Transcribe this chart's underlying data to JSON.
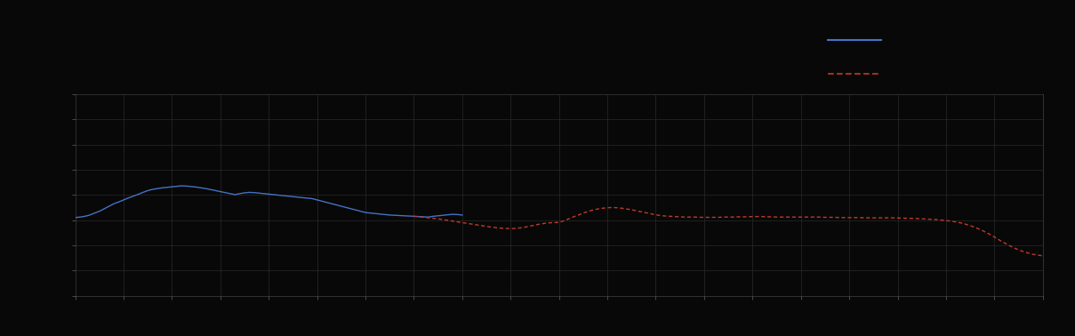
{
  "background_color": "#080808",
  "plot_bg_color": "#080808",
  "grid_color": "#2a2a2a",
  "axis_color": "#444444",
  "tick_color": "#666666",
  "blue_line_color": "#4472c4",
  "red_line_color": "#c0392b",
  "figsize": [
    12.09,
    3.78
  ],
  "dpi": 100,
  "ylim": [
    0,
    8
  ],
  "xlim": [
    0,
    100
  ],
  "n_x_gridlines": 20,
  "n_y_gridlines": 8,
  "blue_x": [
    0.0,
    0.5,
    1.0,
    1.5,
    2.0,
    2.5,
    3.0,
    3.5,
    4.0,
    4.5,
    5.0,
    5.5,
    6.0,
    6.5,
    7.0,
    7.5,
    8.0,
    8.5,
    9.0,
    9.5,
    10.0,
    10.5,
    11.0,
    11.5,
    12.0,
    12.5,
    13.0,
    13.5,
    14.0,
    14.5,
    15.0,
    15.5,
    16.0,
    16.5,
    17.0,
    17.5,
    18.0,
    18.5,
    19.0,
    19.5,
    20.0,
    20.5,
    21.0,
    21.5,
    22.0,
    22.5,
    23.0,
    23.5,
    24.0,
    24.5,
    25.0,
    25.5,
    26.0,
    26.5,
    27.0,
    27.5,
    28.0,
    28.5,
    29.0,
    29.5,
    30.0,
    30.5,
    31.0,
    31.5,
    32.0,
    32.5,
    33.0,
    33.5,
    34.0,
    34.5,
    35.0,
    35.5,
    36.0,
    36.5,
    37.0,
    37.5,
    38.0,
    38.5,
    39.0,
    39.5,
    40.0
  ],
  "blue_y": [
    3.1,
    3.12,
    3.15,
    3.2,
    3.28,
    3.35,
    3.45,
    3.55,
    3.65,
    3.72,
    3.8,
    3.88,
    3.95,
    4.02,
    4.1,
    4.17,
    4.22,
    4.25,
    4.28,
    4.3,
    4.32,
    4.34,
    4.36,
    4.35,
    4.33,
    4.31,
    4.28,
    4.25,
    4.21,
    4.17,
    4.13,
    4.09,
    4.05,
    4.01,
    4.05,
    4.08,
    4.1,
    4.09,
    4.07,
    4.05,
    4.03,
    4.01,
    3.99,
    3.97,
    3.95,
    3.93,
    3.91,
    3.89,
    3.87,
    3.85,
    3.8,
    3.75,
    3.7,
    3.65,
    3.6,
    3.55,
    3.5,
    3.45,
    3.4,
    3.35,
    3.3,
    3.28,
    3.26,
    3.24,
    3.22,
    3.2,
    3.19,
    3.18,
    3.17,
    3.16,
    3.15,
    3.14,
    3.13,
    3.12,
    3.15,
    3.17,
    3.19,
    3.21,
    3.23,
    3.22,
    3.2
  ],
  "red_x": [
    35.0,
    35.5,
    36.0,
    36.5,
    37.0,
    37.5,
    38.0,
    38.5,
    39.0,
    39.5,
    40.0,
    40.5,
    41.0,
    41.5,
    42.0,
    42.5,
    43.0,
    43.5,
    44.0,
    44.5,
    45.0,
    45.5,
    46.0,
    46.5,
    47.0,
    47.5,
    48.0,
    48.5,
    49.0,
    49.5,
    50.0,
    50.5,
    51.0,
    51.5,
    52.0,
    52.5,
    53.0,
    53.5,
    54.0,
    54.5,
    55.0,
    55.5,
    56.0,
    56.5,
    57.0,
    57.5,
    58.0,
    58.5,
    59.0,
    59.5,
    60.0,
    60.5,
    61.0,
    61.5,
    62.0,
    62.5,
    63.0,
    63.5,
    64.0,
    64.5,
    65.0,
    65.5,
    66.0,
    66.5,
    67.0,
    67.5,
    68.0,
    68.5,
    69.0,
    69.5,
    70.0,
    70.5,
    71.0,
    71.5,
    72.0,
    72.5,
    73.0,
    73.5,
    74.0,
    74.5,
    75.0,
    75.5,
    76.0,
    76.5,
    77.0,
    77.5,
    78.0,
    78.5,
    79.0,
    79.5,
    80.0,
    80.5,
    81.0,
    81.5,
    82.0,
    82.5,
    83.0,
    83.5,
    84.0,
    84.5,
    85.0,
    85.5,
    86.0,
    86.5,
    87.0,
    87.5,
    88.0,
    88.5,
    89.0,
    89.5,
    90.0,
    90.5,
    91.0,
    91.5,
    92.0,
    92.5,
    93.0,
    93.5,
    94.0,
    94.5,
    95.0,
    95.5,
    96.0,
    96.5,
    97.0,
    97.5,
    98.0,
    98.5,
    99.0,
    99.5,
    100.0
  ],
  "red_y": [
    3.15,
    3.13,
    3.11,
    3.09,
    3.07,
    3.05,
    3.02,
    2.99,
    2.96,
    2.93,
    2.9,
    2.87,
    2.84,
    2.81,
    2.78,
    2.75,
    2.72,
    2.7,
    2.68,
    2.67,
    2.66,
    2.67,
    2.69,
    2.72,
    2.76,
    2.8,
    2.84,
    2.87,
    2.89,
    2.9,
    2.91,
    2.97,
    3.05,
    3.13,
    3.2,
    3.28,
    3.34,
    3.4,
    3.44,
    3.47,
    3.49,
    3.5,
    3.49,
    3.47,
    3.44,
    3.41,
    3.37,
    3.33,
    3.29,
    3.25,
    3.21,
    3.18,
    3.16,
    3.15,
    3.14,
    3.13,
    3.12,
    3.12,
    3.12,
    3.11,
    3.11,
    3.11,
    3.11,
    3.11,
    3.12,
    3.12,
    3.12,
    3.13,
    3.13,
    3.13,
    3.14,
    3.14,
    3.14,
    3.13,
    3.13,
    3.12,
    3.12,
    3.12,
    3.12,
    3.12,
    3.12,
    3.12,
    3.12,
    3.12,
    3.12,
    3.11,
    3.11,
    3.11,
    3.1,
    3.1,
    3.1,
    3.1,
    3.1,
    3.09,
    3.09,
    3.09,
    3.09,
    3.09,
    3.09,
    3.09,
    3.08,
    3.08,
    3.07,
    3.07,
    3.06,
    3.05,
    3.04,
    3.03,
    3.02,
    3.0,
    2.98,
    2.96,
    2.93,
    2.89,
    2.84,
    2.78,
    2.71,
    2.63,
    2.54,
    2.44,
    2.33,
    2.21,
    2.1,
    2.0,
    1.9,
    1.82,
    1.75,
    1.69,
    1.64,
    1.61,
    1.58
  ]
}
